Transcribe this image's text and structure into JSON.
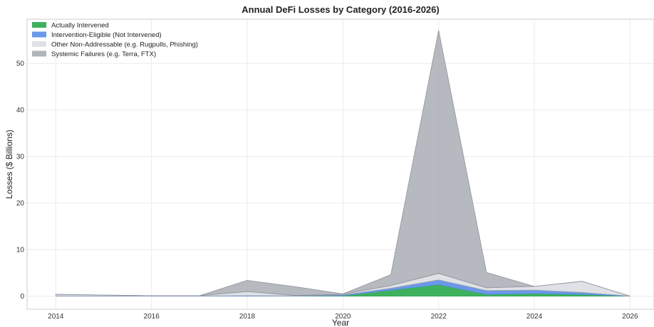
{
  "chart_data": {
    "type": "area",
    "stacked": true,
    "title": "Annual DeFi Losses by Category (2016-2026)",
    "xlabel": "Year",
    "ylabel": "Losses ($ Billions)",
    "xlim": [
      2013.4,
      2026.5
    ],
    "ylim": [
      -2.8,
      59.5
    ],
    "grid": true,
    "legend_position": "top-left",
    "x": [
      2014,
      2015,
      2016,
      2017,
      2018,
      2019,
      2020,
      2021,
      2022,
      2023,
      2024,
      2025,
      2026
    ],
    "x_ticks": [
      2014,
      2016,
      2018,
      2020,
      2022,
      2024,
      2026
    ],
    "y_ticks": [
      0,
      10,
      20,
      30,
      40,
      50
    ],
    "series": [
      {
        "name": "Actually Intervened",
        "color": "#2aa84c",
        "values": [
          0,
          0,
          0,
          0,
          0,
          0,
          0.1,
          1.3,
          2.5,
          0.4,
          0.6,
          0.4,
          0
        ]
      },
      {
        "name": "Intervention-Eligible (Not Intervened)",
        "color": "#5b8de8",
        "values": [
          0.05,
          0.05,
          0.05,
          0.05,
          0.1,
          0.05,
          0.15,
          0.4,
          1.0,
          0.8,
          0.7,
          0.4,
          0
        ]
      },
      {
        "name": "Other Non-Addressable (e.g. Rugpulls, Phishing)",
        "color": "#dcdee3",
        "values": [
          0.35,
          0.2,
          0.05,
          0.05,
          0.9,
          0.1,
          0.15,
          0.6,
          1.4,
          0.6,
          0.8,
          2.4,
          0
        ]
      },
      {
        "name": "Systemic Failures (e.g. Terra, FTX)",
        "color": "#a9adb4",
        "values": [
          0,
          0,
          0,
          0,
          2.4,
          1.9,
          0.1,
          2.3,
          52.2,
          3.3,
          0,
          0,
          0
        ]
      }
    ]
  }
}
